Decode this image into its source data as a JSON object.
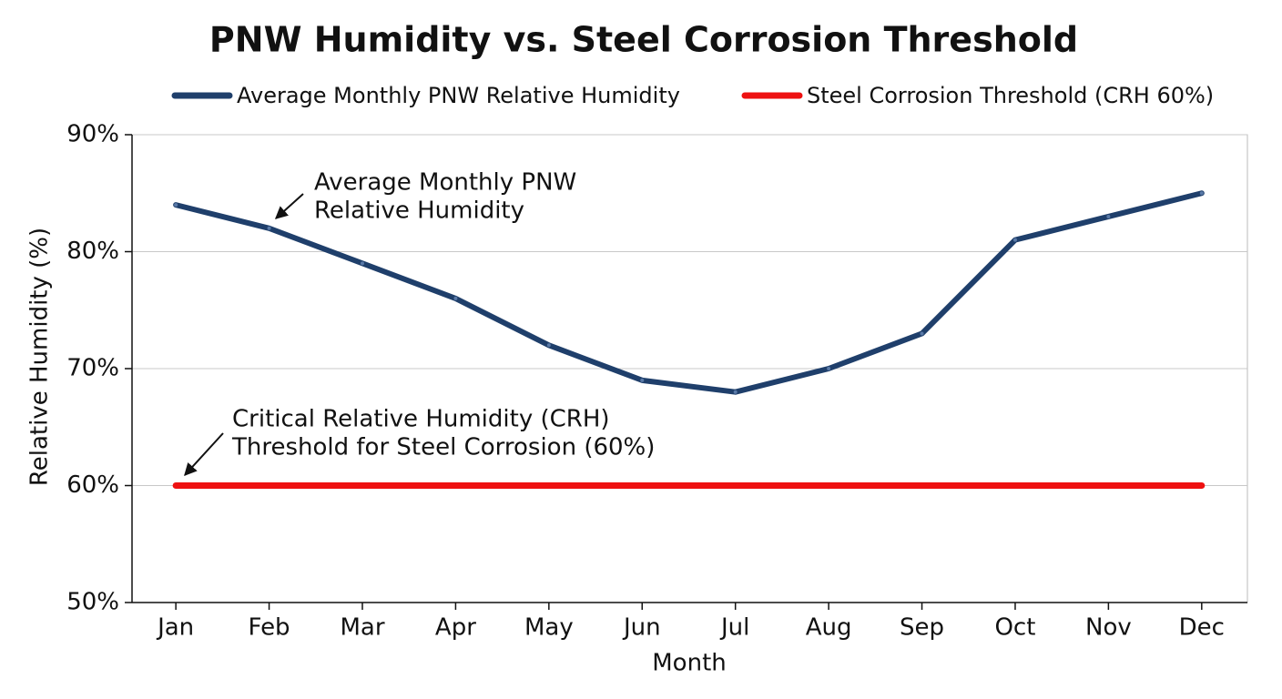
{
  "chart_data": {
    "type": "line",
    "title": "PNW Humidity vs. Steel Corrosion Threshold",
    "x_label": "Month",
    "y_label": "Relative Humidity (%)",
    "categories": [
      "Jan",
      "Feb",
      "Mar",
      "Apr",
      "May",
      "Jun",
      "Jul",
      "Aug",
      "Sep",
      "Oct",
      "Nov",
      "Dec"
    ],
    "series": [
      {
        "name": "Average Monthly PNW Relative Humidity",
        "color": "#1f3f6b",
        "values": [
          84,
          82,
          79,
          76,
          72,
          69,
          68,
          70,
          73,
          81,
          83,
          85
        ]
      },
      {
        "name": "Steel Corrosion Threshold (CRH 60%)",
        "color": "#ee1111",
        "values": [
          60,
          60,
          60,
          60,
          60,
          60,
          60,
          60,
          60,
          60,
          60,
          60
        ]
      }
    ],
    "ylim": [
      50,
      90
    ],
    "yticks": [
      {
        "value": 50,
        "label": "50%"
      },
      {
        "value": 60,
        "label": "60%"
      },
      {
        "value": 70,
        "label": "70%"
      },
      {
        "value": 80,
        "label": "80%"
      },
      {
        "value": 90,
        "label": "90%"
      }
    ],
    "grid": true,
    "legend": "top",
    "annotations": [
      {
        "lines": [
          "Average Monthly PNW",
          "Relative Humidity"
        ]
      },
      {
        "lines": [
          "Critical Relative Humidity (CRH)",
          "Threshold for Steel Corrosion (60%)"
        ]
      }
    ]
  }
}
